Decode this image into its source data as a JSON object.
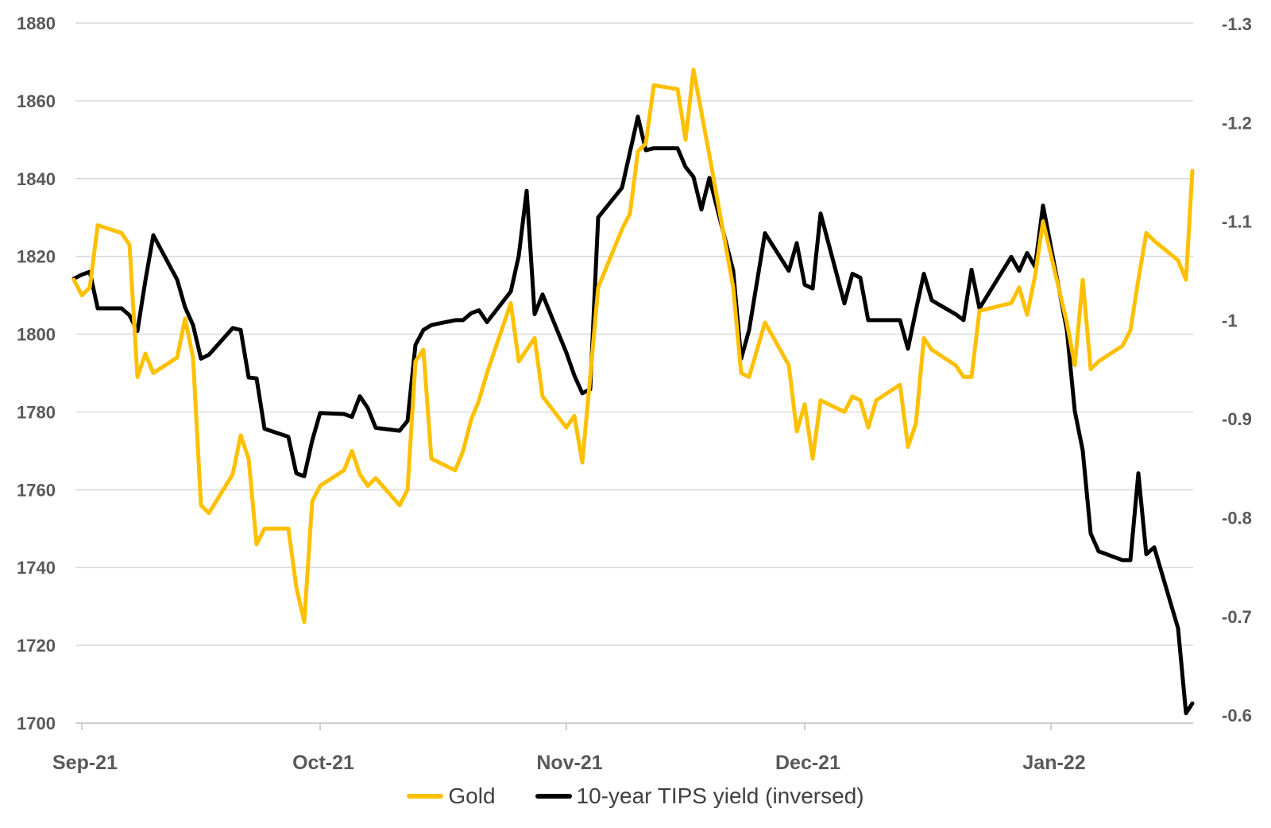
{
  "chart_data": {
    "type": "line",
    "title": "",
    "xlabel": "",
    "ylabel_left": "",
    "ylabel_right": "",
    "grid": true,
    "legend_position": "bottom",
    "background_color": "#FFFFFF",
    "gridline_color": "#D9D9D9",
    "axis_line_color": "#BFBFBF",
    "axis_text_color": "#595959",
    "legend_text_color": "#404040",
    "x_tick_labels": [
      "Sep-21",
      "Oct-21",
      "Nov-21",
      "Dec-21",
      "Jan-22"
    ],
    "x_tick_day_offsets": [
      0,
      30,
      61,
      91,
      122
    ],
    "left_axis": {
      "min": 1700,
      "max": 1880,
      "tick_step": 20,
      "ticks": [
        1880,
        1860,
        1840,
        1820,
        1800,
        1780,
        1760,
        1740,
        1720,
        1700
      ]
    },
    "right_axis": {
      "top_value": -1.3,
      "bottom_value": -0.6,
      "ticks": [
        -1.3,
        -1.2,
        -1.1,
        -1,
        -0.9,
        -0.8,
        -0.7,
        -0.6
      ],
      "tick_labels": [
        "-1.3",
        "-1.2",
        "-1.1",
        "-1",
        "-0.9",
        "-0.8",
        "-0.7",
        "-0.6"
      ]
    },
    "dates": [
      "Aug 31",
      "Sep 1",
      "Sep 2",
      "Sep 3",
      "Sep 6",
      "Sep 7",
      "Sep 8",
      "Sep 9",
      "Sep 10",
      "Sep 13",
      "Sep 14",
      "Sep 15",
      "Sep 16",
      "Sep 17",
      "Sep 20",
      "Sep 21",
      "Sep 22",
      "Sep 23",
      "Sep 24",
      "Sep 27",
      "Sep 28",
      "Sep 29",
      "Sep 30",
      "Oct 1",
      "Oct 4",
      "Oct 5",
      "Oct 6",
      "Oct 7",
      "Oct 8",
      "Oct 11",
      "Oct 12",
      "Oct 13",
      "Oct 14",
      "Oct 15",
      "Oct 18",
      "Oct 19",
      "Oct 20",
      "Oct 21",
      "Oct 22",
      "Oct 25",
      "Oct 26",
      "Oct 27",
      "Oct 28",
      "Oct 29",
      "Nov 1",
      "Nov 2",
      "Nov 3",
      "Nov 4",
      "Nov 5",
      "Nov 8",
      "Nov 9",
      "Nov 10",
      "Nov 11",
      "Nov 12",
      "Nov 15",
      "Nov 16",
      "Nov 17",
      "Nov 18",
      "Nov 19",
      "Nov 22",
      "Nov 23",
      "Nov 24",
      "Nov 26",
      "Nov 29",
      "Nov 30",
      "Dec 1",
      "Dec 2",
      "Dec 3",
      "Dec 6",
      "Dec 7",
      "Dec 8",
      "Dec 9",
      "Dec 10",
      "Dec 13",
      "Dec 14",
      "Dec 15",
      "Dec 16",
      "Dec 17",
      "Dec 20",
      "Dec 21",
      "Dec 22",
      "Dec 23",
      "Dec 27",
      "Dec 28",
      "Dec 29",
      "Dec 30",
      "Dec 31",
      "Jan 3",
      "Jan 4",
      "Jan 5",
      "Jan 6",
      "Jan 7",
      "Jan 10",
      "Jan 11",
      "Jan 12",
      "Jan 13",
      "Jan 14",
      "Jan 17",
      "Jan 18",
      "Jan 19"
    ],
    "day_offsets": [
      -1,
      0,
      1,
      2,
      5,
      6,
      7,
      8,
      9,
      12,
      13,
      14,
      15,
      16,
      19,
      20,
      21,
      22,
      23,
      26,
      27,
      28,
      29,
      30,
      33,
      34,
      35,
      36,
      37,
      40,
      41,
      42,
      43,
      44,
      47,
      48,
      49,
      50,
      51,
      54,
      55,
      56,
      57,
      58,
      61,
      62,
      63,
      64,
      65,
      68,
      69,
      70,
      71,
      72,
      75,
      76,
      77,
      78,
      79,
      82,
      83,
      84,
      86,
      89,
      90,
      91,
      92,
      93,
      96,
      97,
      98,
      99,
      100,
      103,
      104,
      105,
      106,
      107,
      110,
      111,
      112,
      113,
      117,
      118,
      119,
      120,
      121,
      124,
      125,
      126,
      127,
      128,
      131,
      132,
      133,
      134,
      135,
      138,
      139,
      140
    ],
    "series": [
      {
        "name": "Gold",
        "axis": "left",
        "color": "#FFC000",
        "values": [
          1814,
          1810,
          1812,
          1828,
          1826,
          1823,
          1789,
          1795,
          1790,
          1794,
          1804,
          1794,
          1756,
          1754,
          1764,
          1774,
          1768,
          1746,
          1750,
          1750,
          1735,
          1726,
          1757,
          1761,
          1765,
          1770,
          1764,
          1761,
          1763,
          1756,
          1760,
          1793,
          1796,
          1768,
          1765,
          1770,
          1778,
          1783,
          1790,
          1808,
          1793,
          1796,
          1799,
          1784,
          1776,
          1779,
          1767,
          1789,
          1812,
          1827,
          1831,
          1847,
          1849,
          1864,
          1863,
          1850,
          1868,
          1857,
          1846,
          1812,
          1790,
          1789,
          1803,
          1792,
          1775,
          1782,
          1768,
          1783,
          1780,
          1784,
          1783,
          1776,
          1783,
          1787,
          1771,
          1777,
          1799,
          1796,
          1792,
          1789,
          1789,
          1806,
          1808,
          1812,
          1805,
          1815,
          1829,
          1803,
          1792,
          1814,
          1791,
          1793,
          1797,
          1801,
          1814,
          1826,
          1824,
          1819,
          1814,
          1842
        ]
      },
      {
        "name": "10-year TIPS yield (inversed)",
        "axis": "right",
        "color": "#000000",
        "values": [
          -1.042,
          -1.046,
          -1.049,
          -1.012,
          -1.012,
          -1.005,
          -0.989,
          -1.04,
          -1.086,
          -1.041,
          -1.013,
          -0.995,
          -0.961,
          -0.965,
          -0.992,
          -0.99,
          -0.942,
          -0.941,
          -0.89,
          -0.882,
          -0.845,
          -0.842,
          -0.878,
          -0.906,
          -0.905,
          -0.902,
          -0.923,
          -0.911,
          -0.891,
          -0.888,
          -0.898,
          -0.975,
          -0.99,
          -0.995,
          -1.0,
          -1.0,
          -1.007,
          -1.01,
          -0.998,
          -1.029,
          -1.065,
          -1.131,
          -1.006,
          -1.026,
          -0.967,
          -0.944,
          -0.926,
          -0.93,
          -1.104,
          -1.134,
          -1.17,
          -1.206,
          -1.172,
          -1.174,
          -1.174,
          -1.155,
          -1.145,
          -1.112,
          -1.144,
          -1.05,
          -0.961,
          -0.99,
          -1.088,
          -1.05,
          -1.078,
          -1.036,
          -1.032,
          -1.108,
          -1.017,
          -1.047,
          -1.043,
          -1.0,
          -1.0,
          -1.0,
          -0.971,
          -1.01,
          -1.047,
          -1.02,
          -1.006,
          -1.0,
          -1.051,
          -1.012,
          -1.064,
          -1.05,
          -1.068,
          -1.054,
          -1.116,
          -0.99,
          -0.908,
          -0.868,
          -0.784,
          -0.766,
          -0.757,
          -0.757,
          -0.845,
          -0.763,
          -0.77,
          -0.688,
          -0.602,
          -0.612
        ]
      }
    ]
  },
  "legend": {
    "items": [
      {
        "label": "Gold",
        "color": "#FFC000"
      },
      {
        "label": "10-year TIPS yield (inversed)",
        "color": "#000000"
      }
    ]
  }
}
